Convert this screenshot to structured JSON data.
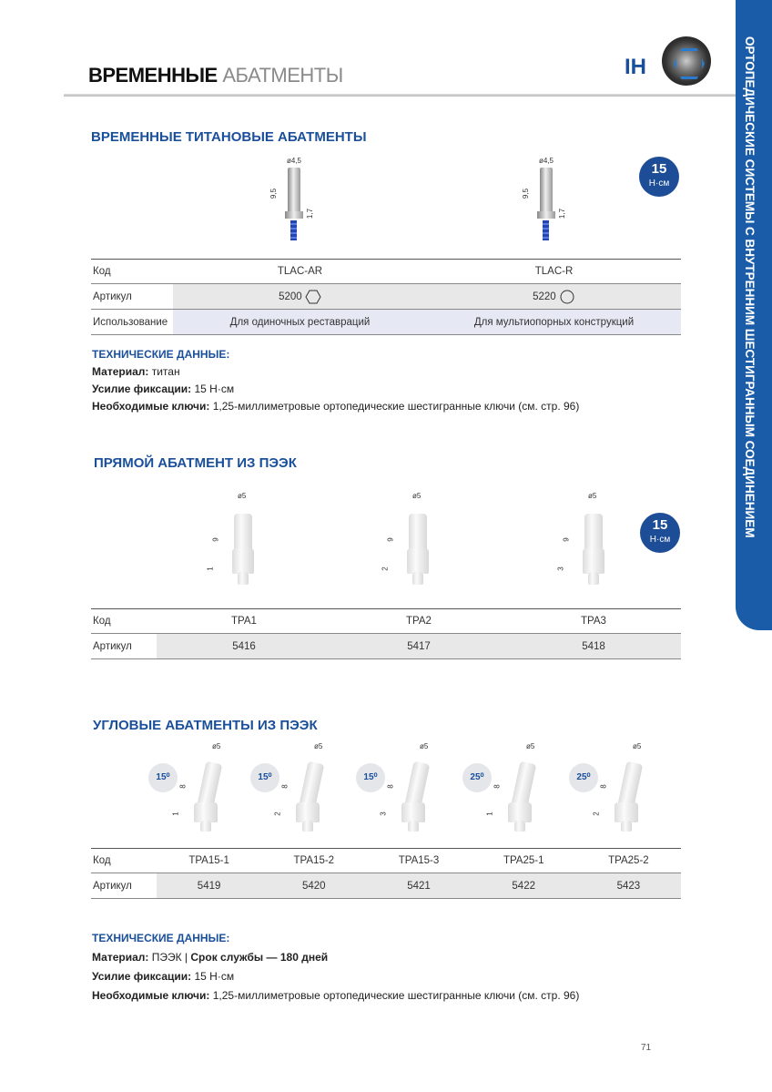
{
  "header": {
    "title_bold": "ВРЕМЕННЫЕ",
    "title_light": "АБАТМЕНТЫ",
    "system": "IH"
  },
  "side_tab": "ОРТОПЕДИЧЕСКИЕ СИСТЕМЫ С ВНУТРЕННИМ ШЕСТИГРАННЫМ СОЕДИНЕНИЕМ",
  "colors": {
    "accent": "#1a4f9c",
    "tab": "#1a5ca8"
  },
  "section1": {
    "title": "ВРЕМЕННЫЕ ТИТАНОВЫЕ АБАТМЕНТЫ",
    "torque": {
      "value": "15",
      "unit": "Н·см"
    },
    "products": [
      {
        "diameter": "ø4,5",
        "height": "9,5",
        "collar": "1,7"
      },
      {
        "diameter": "ø4,5",
        "height": "9,5",
        "collar": "1,7"
      }
    ],
    "table": {
      "code_label": "Код",
      "article_label": "Артикул",
      "usage_label": "Использование",
      "codes": [
        "TLAC-AR",
        "TLAC-R"
      ],
      "articles": [
        "5200",
        "5220"
      ],
      "article_icons": [
        "hexagon-icon",
        "circle-icon"
      ],
      "usage": [
        "Для одиночных реставраций",
        "Для мультиопорных конструкций"
      ]
    },
    "tech": {
      "heading": "ТЕХНИЧЕСКИЕ ДАННЫЕ:",
      "material_label": "Материал:",
      "material": "титан",
      "torque_label": "Усилие фиксации:",
      "torque": "15 Н·см",
      "keys_label": "Необходимые ключи:",
      "keys": "1,25-миллиметровые ортопедические шестигранные ключи (см. стр. 96)"
    }
  },
  "section2": {
    "title": "ПРЯМОЙ АБАТМЕНТ ИЗ ПЭЭК",
    "torque": {
      "value": "15",
      "unit": "Н·см"
    },
    "products": [
      {
        "diameter": "ø5",
        "height": "9",
        "collar": "1"
      },
      {
        "diameter": "ø5",
        "height": "9",
        "collar": "2"
      },
      {
        "diameter": "ø5",
        "height": "9",
        "collar": "3"
      }
    ],
    "table": {
      "code_label": "Код",
      "article_label": "Артикул",
      "codes": [
        "TPA1",
        "TPA2",
        "TPA3"
      ],
      "articles": [
        "5416",
        "5417",
        "5418"
      ]
    }
  },
  "section3": {
    "title": "УГЛОВЫЕ АБАТМЕНТЫ ИЗ ПЭЭК",
    "products": [
      {
        "angle": "15⁰",
        "diameter": "ø5",
        "height": "8",
        "collar": "1"
      },
      {
        "angle": "15⁰",
        "diameter": "ø5",
        "height": "8",
        "collar": "2"
      },
      {
        "angle": "15⁰",
        "diameter": "ø5",
        "height": "8",
        "collar": "3"
      },
      {
        "angle": "25⁰",
        "diameter": "ø5",
        "height": "8",
        "collar": "1"
      },
      {
        "angle": "25⁰",
        "diameter": "ø5",
        "height": "8",
        "collar": "2"
      }
    ],
    "table": {
      "code_label": "Код",
      "article_label": "Артикул",
      "codes": [
        "TPA15-1",
        "TPA15-2",
        "TPA15-3",
        "TPA25-1",
        "TPA25-2"
      ],
      "articles": [
        "5419",
        "5420",
        "5421",
        "5422",
        "5423"
      ]
    },
    "tech": {
      "heading": "ТЕХНИЧЕСКИЕ ДАННЫЕ:",
      "material_label": "Материал:",
      "material": "ПЭЭК |",
      "life_label": "Срок службы — 180 дней",
      "torque_label": "Усилие фиксации:",
      "torque": "15 Н·см",
      "keys_label": "Необходимые ключи:",
      "keys": "1,25-миллиметровые ортопедические шестигранные ключи (см. стр. 96)"
    }
  },
  "page_number": "71"
}
